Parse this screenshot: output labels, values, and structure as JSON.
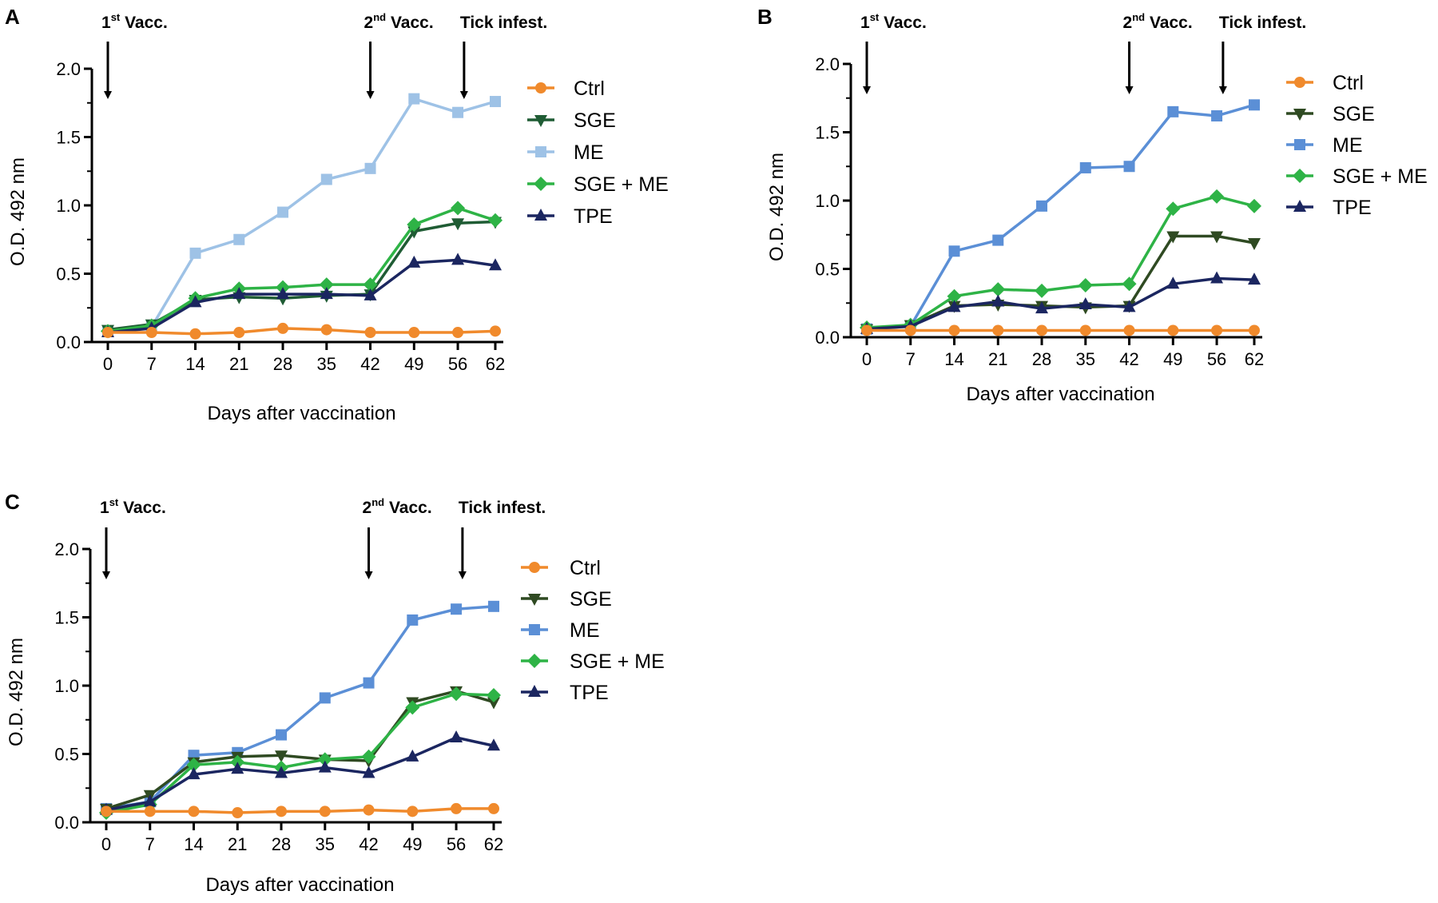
{
  "chart_data": [
    {
      "panel": "A",
      "type": "line",
      "xlabel": "Days after vaccination",
      "ylabel": "O.D. 492 nm",
      "x": [
        0,
        7,
        14,
        21,
        28,
        35,
        42,
        49,
        56,
        62
      ],
      "xticks": [
        "0",
        "7",
        "14",
        "21",
        "28",
        "35",
        "42",
        "49",
        "56",
        "62"
      ],
      "yticks": [
        "0.0",
        "0.5",
        "1.0",
        "1.5",
        "2.0"
      ],
      "ylim": [
        0,
        2
      ],
      "arrows": [
        {
          "base": "1",
          "sup": "st",
          "rest": " Vacc.",
          "day": 0
        },
        {
          "base": "2",
          "sup": "nd",
          "rest": " Vacc.",
          "day": 42
        },
        {
          "base": "Tick infest.",
          "sup": "",
          "rest": "",
          "day": 57
        }
      ],
      "series": [
        {
          "name": "Ctrl",
          "marker": "circle",
          "color": "#F08A2C",
          "values": [
            0.07,
            0.07,
            0.06,
            0.07,
            0.1,
            0.09,
            0.07,
            0.07,
            0.07,
            0.08
          ]
        },
        {
          "name": "SGE",
          "marker": "triangle-down",
          "color": "#1F5C34",
          "values": [
            0.09,
            0.13,
            0.31,
            0.33,
            0.32,
            0.34,
            0.35,
            0.81,
            0.87,
            0.88
          ]
        },
        {
          "name": "ME",
          "marker": "square",
          "color": "#9EC2E6",
          "values": [
            0.08,
            0.11,
            0.65,
            0.75,
            0.95,
            1.19,
            1.27,
            1.78,
            1.68,
            1.76
          ]
        },
        {
          "name": "SGE + ME",
          "marker": "diamond",
          "color": "#2EB346",
          "values": [
            0.08,
            0.12,
            0.32,
            0.39,
            0.4,
            0.42,
            0.42,
            0.86,
            0.98,
            0.89
          ]
        },
        {
          "name": "TPE",
          "marker": "triangle-up",
          "color": "#1B2660",
          "values": [
            0.07,
            0.1,
            0.29,
            0.35,
            0.35,
            0.35,
            0.34,
            0.58,
            0.6,
            0.56
          ]
        }
      ]
    },
    {
      "panel": "B",
      "type": "line",
      "xlabel": "Days after vaccination",
      "ylabel": "O.D. 492 nm",
      "x": [
        0,
        7,
        14,
        21,
        28,
        35,
        42,
        49,
        56,
        62
      ],
      "xticks": [
        "0",
        "7",
        "14",
        "21",
        "28",
        "35",
        "42",
        "49",
        "56",
        "62"
      ],
      "yticks": [
        "0.0",
        "0.5",
        "1.0",
        "1.5",
        "2.0"
      ],
      "ylim": [
        0,
        2
      ],
      "arrows": [
        {
          "base": "1",
          "sup": "st",
          "rest": " Vacc.",
          "day": 0
        },
        {
          "base": "2",
          "sup": "nd",
          "rest": " Vacc.",
          "day": 42
        },
        {
          "base": "Tick infest.",
          "sup": "",
          "rest": "",
          "day": 57
        }
      ],
      "series": [
        {
          "name": "Ctrl",
          "marker": "circle",
          "color": "#F08A2C",
          "values": [
            0.05,
            0.05,
            0.05,
            0.05,
            0.05,
            0.05,
            0.05,
            0.05,
            0.05,
            0.05
          ]
        },
        {
          "name": "SGE",
          "marker": "triangle-down",
          "color": "#2F4A22",
          "values": [
            0.06,
            0.09,
            0.23,
            0.24,
            0.23,
            0.22,
            0.23,
            0.74,
            0.74,
            0.69
          ]
        },
        {
          "name": "ME",
          "marker": "square",
          "color": "#5B8FD6",
          "values": [
            0.06,
            0.08,
            0.63,
            0.71,
            0.96,
            1.24,
            1.25,
            1.65,
            1.62,
            1.7
          ]
        },
        {
          "name": "SGE + ME",
          "marker": "diamond",
          "color": "#2EB346",
          "values": [
            0.07,
            0.09,
            0.3,
            0.35,
            0.34,
            0.38,
            0.39,
            0.94,
            1.03,
            0.96
          ]
        },
        {
          "name": "TPE",
          "marker": "triangle-up",
          "color": "#1B2660",
          "values": [
            0.06,
            0.08,
            0.22,
            0.26,
            0.21,
            0.24,
            0.22,
            0.39,
            0.43,
            0.42
          ]
        }
      ]
    },
    {
      "panel": "C",
      "type": "line",
      "xlabel": "Days after vaccination",
      "ylabel": "O.D. 492 nm",
      "x": [
        0,
        7,
        14,
        21,
        28,
        35,
        42,
        49,
        56,
        62
      ],
      "xticks": [
        "0",
        "7",
        "14",
        "21",
        "28",
        "35",
        "42",
        "49",
        "56",
        "62"
      ],
      "yticks": [
        "0.0",
        "0.5",
        "1.0",
        "1.5",
        "2.0"
      ],
      "ylim": [
        0,
        2
      ],
      "arrows": [
        {
          "base": "1",
          "sup": "st",
          "rest": " Vacc.",
          "day": 0
        },
        {
          "base": "2",
          "sup": "nd",
          "rest": " Vacc.",
          "day": 42
        },
        {
          "base": "Tick infest.",
          "sup": "",
          "rest": "",
          "day": 57
        }
      ],
      "series": [
        {
          "name": "Ctrl",
          "marker": "circle",
          "color": "#F08A2C",
          "values": [
            0.08,
            0.08,
            0.08,
            0.07,
            0.08,
            0.08,
            0.09,
            0.08,
            0.1,
            0.1
          ]
        },
        {
          "name": "SGE",
          "marker": "triangle-down",
          "color": "#2F4A22",
          "values": [
            0.1,
            0.2,
            0.44,
            0.48,
            0.49,
            0.46,
            0.45,
            0.88,
            0.96,
            0.88
          ]
        },
        {
          "name": "ME",
          "marker": "square",
          "color": "#5B8FD6",
          "values": [
            0.1,
            0.15,
            0.49,
            0.51,
            0.64,
            0.91,
            1.02,
            1.48,
            1.56,
            1.58
          ]
        },
        {
          "name": "SGE + ME",
          "marker": "diamond",
          "color": "#2EB346",
          "values": [
            0.07,
            0.13,
            0.42,
            0.44,
            0.4,
            0.46,
            0.48,
            0.84,
            0.94,
            0.93
          ]
        },
        {
          "name": "TPE",
          "marker": "triangle-up",
          "color": "#1B2660",
          "values": [
            0.09,
            0.15,
            0.35,
            0.39,
            0.36,
            0.4,
            0.36,
            0.48,
            0.62,
            0.56
          ]
        }
      ]
    }
  ]
}
